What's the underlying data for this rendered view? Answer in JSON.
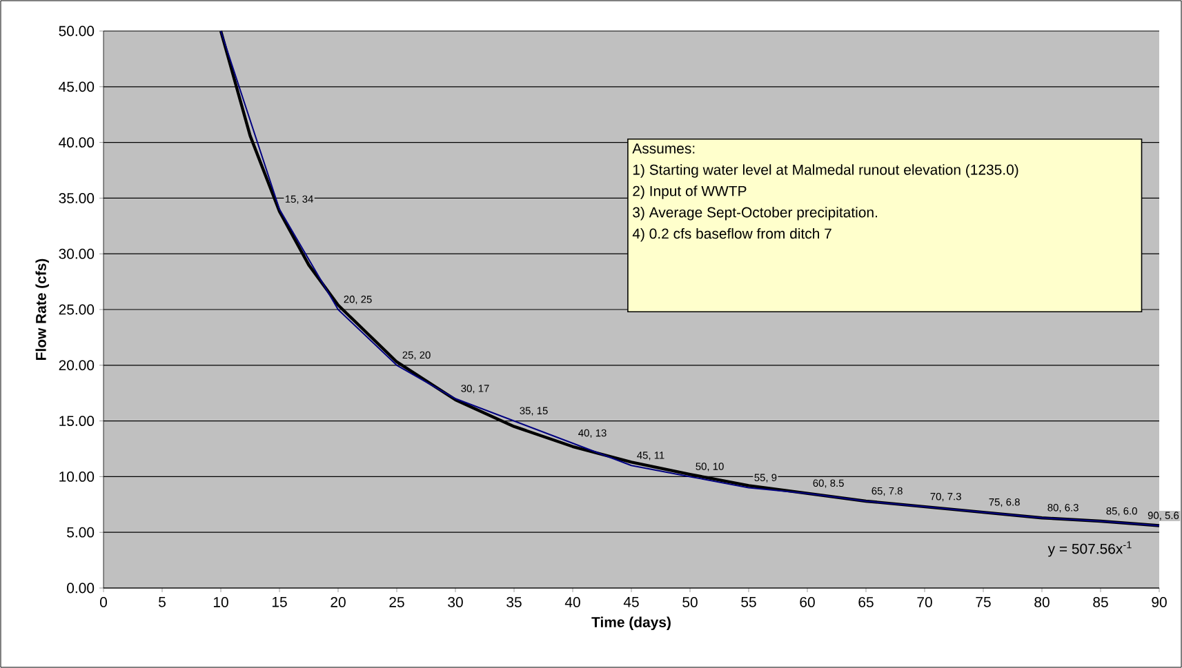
{
  "chart_data": {
    "type": "line",
    "xlabel": "Time (days)",
    "ylabel": "Flow Rate (cfs)",
    "x": [
      10,
      15,
      20,
      25,
      30,
      35,
      40,
      45,
      50,
      55,
      60,
      65,
      70,
      75,
      80,
      85,
      90
    ],
    "series": [
      {
        "color": "#000080",
        "values": [
          50,
          34,
          25,
          20,
          17,
          15,
          13,
          11,
          10,
          9,
          8.5,
          7.8,
          7.3,
          6.8,
          6.3,
          6.0,
          5.6
        ]
      },
      {
        "type": "line",
        "color": "#000000",
        "x": [
          10,
          12.5,
          15,
          17.5,
          20,
          25,
          30,
          35,
          40,
          45,
          50,
          55,
          60,
          65,
          70,
          75,
          80,
          85,
          90
        ],
        "values": [
          50,
          40.6,
          33.8,
          29,
          25.4,
          20.3,
          16.9,
          14.5,
          12.7,
          11.3,
          10.2,
          9.2,
          8.5,
          7.8,
          7.3,
          6.8,
          6.3,
          6.0,
          5.6
        ]
      }
    ],
    "xlim": [
      0,
      90
    ],
    "ylim": [
      0,
      50
    ],
    "xticks": [
      0,
      5,
      10,
      15,
      20,
      25,
      30,
      35,
      40,
      45,
      50,
      55,
      60,
      65,
      70,
      75,
      80,
      85,
      90
    ],
    "yticks": [
      {
        "value": 0,
        "label": "0.00"
      },
      {
        "value": 5,
        "label": "5.00"
      },
      {
        "value": 10,
        "label": "10.00"
      },
      {
        "value": 15,
        "label": "15.00"
      },
      {
        "value": 20,
        "label": "20.00"
      },
      {
        "value": 25,
        "label": "25.00"
      },
      {
        "value": 30,
        "label": "30.00"
      },
      {
        "value": 35,
        "label": "35.00"
      },
      {
        "value": 40,
        "label": "40.00"
      },
      {
        "value": 45,
        "label": "45.00"
      },
      {
        "value": 50,
        "label": "50.00"
      }
    ],
    "grid": "y",
    "marker": "none",
    "line_style": "solid",
    "annotations": [
      "Assumes:",
      "1)  Starting water level at Malmedal runout elevation (1235.0)",
      "2)  Input of WWTP",
      "3)  Average Sept-October precipitation.",
      "4) 0.2 cfs baseflow from ditch 7",
      {
        "text": "15, 34",
        "x": 15,
        "y": 34
      },
      {
        "text": "20, 25",
        "x": 20,
        "y": 25
      },
      {
        "text": "25, 20",
        "x": 25,
        "y": 20
      },
      {
        "text": "30, 17",
        "x": 30,
        "y": 17
      },
      {
        "text": "35, 15",
        "x": 35,
        "y": 15
      },
      {
        "text": "40, 13",
        "x": 40,
        "y": 13
      },
      {
        "text": "45, 11",
        "x": 45,
        "y": 11
      },
      {
        "text": "50, 10",
        "x": 50,
        "y": 10
      },
      {
        "text": "55, 9",
        "x": 55,
        "y": 9
      },
      {
        "text": "60, 8.5",
        "x": 60,
        "y": 8.5
      },
      {
        "text": "65, 7.8",
        "x": 65,
        "y": 7.8
      },
      {
        "text": "70, 7.3",
        "x": 70,
        "y": 7.3
      },
      {
        "text": "75, 6.8",
        "x": 75,
        "y": 6.8
      },
      {
        "text": "80, 6.3",
        "x": 80,
        "y": 6.3
      },
      {
        "text": "85, 6.0",
        "x": 85,
        "y": 6.0
      },
      {
        "text": "90, 5.6",
        "x": 90,
        "y": 5.6
      },
      "y = 507.56x$^{-1}$"
    ]
  }
}
